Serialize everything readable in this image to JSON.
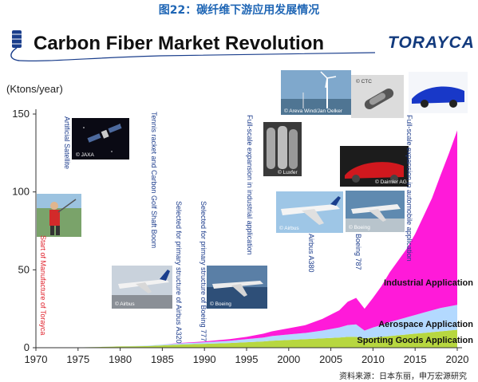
{
  "page_title": "图22：碳纤维下游应用发展情况",
  "logo_text": "TORAYCA",
  "source_note": "资料来源：日本东丽，申万宏源研究",
  "colors": {
    "title_blue": "#1f66b5",
    "sporting": "#b7d740",
    "aerospace": "#b3d9ff",
    "industrial": "#ff1ad9",
    "event_text": "#1c3c8c",
    "event_red": "#e0202a"
  },
  "events": [
    {
      "id": "toray-start",
      "text": "Start of Manufacture of Torayca",
      "year": 1971,
      "color": "red"
    },
    {
      "id": "artificial-satellite",
      "text": "Artificial Satellite",
      "year": 1973,
      "color": "blue"
    },
    {
      "id": "tennis-golf",
      "text": "Tennis racket and Carbon Golf Shaft Boom",
      "year": 1983,
      "color": "blue"
    },
    {
      "id": "a320",
      "text": "Selected for primary structure of Airbus A320",
      "year": 1987,
      "color": "blue"
    },
    {
      "id": "b777",
      "text": "Selected for primary structure of Boeing 777",
      "year": 1990,
      "color": "blue"
    },
    {
      "id": "industrial-expansion",
      "text": "Full-scale expansion in industrial application",
      "year": 1996,
      "color": "blue"
    },
    {
      "id": "a380",
      "text": "Airbus A380",
      "year": 2003,
      "color": "blue"
    },
    {
      "id": "b787",
      "text": "Boeing 787",
      "year": 2008,
      "color": "blue"
    },
    {
      "id": "auto-expansion",
      "text": "Full-scale expansion in automobile application",
      "year": 2014,
      "color": "blue"
    }
  ],
  "photos": [
    {
      "id": "satellite",
      "credit": "© JAXA"
    },
    {
      "id": "golfer",
      "credit": ""
    },
    {
      "id": "airbus-a320",
      "credit": "© Airbus"
    },
    {
      "id": "boeing-777",
      "credit": "© Boeing"
    },
    {
      "id": "pressure-tanks",
      "credit": "© Luxfer"
    },
    {
      "id": "wind-turbines",
      "credit": "© Areva Wind/Jan Oelker"
    },
    {
      "id": "ctc-tube",
      "credit": "© CTC"
    },
    {
      "id": "sports-car",
      "credit": ""
    },
    {
      "id": "daimler-car",
      "credit": "© Daimler AG"
    },
    {
      "id": "airbus-a380",
      "credit": "© Airbus"
    },
    {
      "id": "boeing-787",
      "credit": "© Boeing"
    }
  ],
  "chart_data": {
    "type": "area",
    "stacked": true,
    "title": "Carbon Fiber Market Revolution",
    "ylabel": "(Ktons/year)",
    "xlabel": "",
    "xlim": [
      1970,
      2020
    ],
    "ylim": [
      0,
      150
    ],
    "x_ticks": [
      1970,
      1975,
      1980,
      1985,
      1990,
      1995,
      2000,
      2005,
      2010,
      2015,
      2020
    ],
    "y_ticks": [
      0,
      50,
      100,
      150
    ],
    "grid": false,
    "legend": "labels placed inside the areas",
    "x": [
      1970,
      1975,
      1980,
      1983,
      1985,
      1987,
      1990,
      1993,
      1995,
      1997,
      1998,
      2000,
      2002,
      2004,
      2006,
      2007,
      2008,
      2009,
      2010,
      2011,
      2012,
      2013,
      2014,
      2015,
      2016,
      2017,
      2018,
      2019,
      2020
    ],
    "series": [
      {
        "name": "Sporting Goods Application",
        "color": "#b7d740",
        "values": [
          0,
          0.2,
          0.8,
          1.0,
          1.5,
          2.0,
          2.5,
          3.0,
          3.5,
          4.0,
          4.5,
          5.0,
          5.5,
          6.0,
          6.5,
          7.0,
          7.0,
          6.0,
          6.5,
          7.0,
          7.5,
          8.0,
          8.5,
          9.0,
          9.5,
          10.0,
          10.5,
          11.0,
          11.5
        ]
      },
      {
        "name": "Aerospace Application",
        "color": "#b3d9ff",
        "values": [
          0,
          0,
          0.1,
          0.3,
          0.5,
          0.8,
          1.0,
          1.5,
          2.0,
          2.5,
          3.0,
          3.5,
          4.0,
          5.0,
          6.5,
          7.5,
          8.0,
          5.0,
          6.5,
          7.5,
          9.0,
          10.0,
          11.0,
          12.0,
          13.0,
          14.0,
          15.0,
          15.5,
          16.0
        ]
      },
      {
        "name": "Industrial Application",
        "color": "#ff1ad9",
        "values": [
          0,
          0,
          0,
          0,
          0,
          0.2,
          0.5,
          1.0,
          1.5,
          2.5,
          3.0,
          4.0,
          5.0,
          7.5,
          11.0,
          15.0,
          17.0,
          14.0,
          19.0,
          25.0,
          32.0,
          38.0,
          44.0,
          52.0,
          62.0,
          72.0,
          85.0,
          98.0,
          112.0
        ]
      }
    ]
  }
}
